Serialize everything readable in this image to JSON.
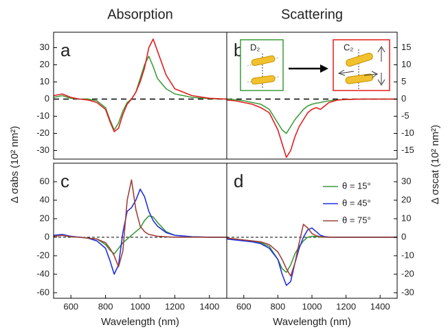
{
  "chart_data": [
    {
      "type": "line",
      "title": "Absorption",
      "panel": "a",
      "ylabel": "Δ σabs (10² nm²)",
      "xlim": [
        500,
        1500
      ],
      "ylim": [
        -35,
        39
      ],
      "yticks": [
        -30,
        -20,
        -10,
        0,
        10,
        20,
        30
      ],
      "x": [
        500,
        550,
        600,
        650,
        700,
        750,
        800,
        825,
        850,
        875,
        900,
        925,
        950,
        975,
        1000,
        1025,
        1050,
        1075,
        1100,
        1150,
        1200,
        1300,
        1400,
        1500
      ],
      "series": [
        {
          "color": "#3a9a3a",
          "values": [
            1,
            2,
            0.5,
            0,
            0,
            -1,
            -5,
            -12,
            -18,
            -14,
            -7,
            -2,
            0,
            4,
            12,
            20,
            25,
            19,
            12,
            6,
            3,
            1,
            0.3,
            0
          ]
        },
        {
          "color": "#e41a1c",
          "values": [
            2,
            3,
            1,
            0,
            -0.5,
            -2,
            -6,
            -13,
            -19,
            -17,
            -9,
            -3,
            0,
            4,
            10,
            18,
            30,
            35,
            28,
            14,
            6,
            2,
            0.5,
            0
          ]
        }
      ]
    },
    {
      "type": "line",
      "title": "Scattering",
      "panel": "b",
      "y2label": "Δ σscat (10² nm²)",
      "annotations": [
        "D₂",
        "C₂"
      ],
      "xlim": [
        500,
        1500
      ],
      "y2lim": [
        -17.5,
        19.5
      ],
      "y2ticks": [
        -15,
        -10,
        -5,
        0,
        5,
        10,
        15
      ],
      "x": [
        500,
        550,
        600,
        650,
        700,
        750,
        800,
        825,
        850,
        875,
        900,
        925,
        950,
        975,
        1000,
        1025,
        1050,
        1075,
        1100,
        1150,
        1200,
        1300,
        1400,
        1500
      ],
      "series": [
        {
          "color": "#3a9a3a",
          "axis": "y2",
          "values": [
            0,
            -0.2,
            -0.5,
            -1,
            -1.5,
            -3,
            -7,
            -9,
            -10,
            -8,
            -6,
            -4.5,
            -3,
            -2,
            -1.5,
            -1.2,
            -1,
            -0.7,
            -0.5,
            -0.2,
            -0.1,
            0,
            0,
            0
          ]
        },
        {
          "color": "#e41a1c",
          "axis": "y2",
          "values": [
            -0.3,
            -0.5,
            -1,
            -1.5,
            -2.5,
            -4,
            -9,
            -13,
            -17,
            -15,
            -11,
            -8,
            -6,
            -4,
            -3,
            -2.5,
            -3,
            -2,
            -1,
            -0.3,
            -0.1,
            0,
            0,
            0
          ]
        }
      ]
    },
    {
      "type": "line",
      "panel": "c",
      "xlabel": "Wavelength (nm)",
      "xlim": [
        500,
        1500
      ],
      "xticks": [
        600,
        800,
        1000,
        1200,
        1400
      ],
      "ylim": [
        -66,
        80
      ],
      "yticks": [
        -60,
        -40,
        -20,
        0,
        20,
        40,
        60
      ],
      "x": [
        500,
        550,
        600,
        650,
        700,
        750,
        800,
        825,
        850,
        875,
        900,
        925,
        950,
        975,
        1000,
        1025,
        1050,
        1075,
        1100,
        1150,
        1200,
        1300,
        1400,
        1500
      ],
      "series": [
        {
          "color": "#3a9a3a",
          "values": [
            1,
            2,
            0.5,
            0,
            -1,
            -2,
            -8,
            -14,
            -18,
            -12,
            -6,
            -2,
            2,
            6,
            10,
            18,
            23,
            22,
            16,
            6,
            2,
            0.5,
            0,
            0
          ]
        },
        {
          "color": "#1f2fe0",
          "values": [
            2,
            3,
            1,
            0,
            -1,
            -4,
            -12,
            -25,
            -40,
            -30,
            5,
            28,
            32,
            40,
            52,
            44,
            28,
            18,
            12,
            5,
            2,
            0.5,
            0,
            0
          ]
        },
        {
          "color": "#a0403a",
          "values": [
            1,
            2,
            0.5,
            0,
            -1,
            -2,
            -6,
            -12,
            -20,
            -32,
            -15,
            40,
            62,
            30,
            12,
            6,
            3,
            2,
            1,
            0.5,
            0,
            0,
            0,
            0
          ]
        }
      ]
    },
    {
      "type": "line",
      "panel": "d",
      "xlabel": "Wavelength (nm)",
      "xlim": [
        500,
        1500
      ],
      "xticks": [
        600,
        800,
        1000,
        1200,
        1400
      ],
      "y2lim": [
        -33,
        40
      ],
      "y2ticks": [
        -30,
        -20,
        -10,
        0,
        10,
        20,
        30
      ],
      "x": [
        500,
        550,
        600,
        650,
        700,
        750,
        800,
        825,
        850,
        875,
        900,
        925,
        950,
        975,
        1000,
        1025,
        1050,
        1075,
        1100,
        1150,
        1200,
        1300,
        1400,
        1500
      ],
      "series": [
        {
          "name": "θ = 15°",
          "color": "#3a9a3a",
          "axis": "y2",
          "values": [
            -0.5,
            -1,
            -1.5,
            -2,
            -3,
            -5,
            -12,
            -17,
            -19,
            -15,
            -9,
            -5,
            -2,
            0,
            0.5,
            0.3,
            0.1,
            0,
            0,
            0,
            0,
            0,
            0,
            0
          ]
        },
        {
          "name": "θ = 45°",
          "color": "#1f2fe0",
          "axis": "y2",
          "values": [
            -1,
            -1.5,
            -2,
            -2.5,
            -3.5,
            -6,
            -12,
            -20,
            -26,
            -24,
            -14,
            -6,
            0,
            4,
            5,
            3,
            1,
            0.3,
            0.1,
            0,
            0,
            0,
            0,
            0
          ]
        },
        {
          "name": "θ = 75°",
          "color": "#a0403a",
          "axis": "y2",
          "values": [
            -0.5,
            -1,
            -1.5,
            -2,
            -2.5,
            -4,
            -8,
            -12,
            -17,
            -21,
            -14,
            -3,
            7,
            5,
            2,
            0.8,
            0.3,
            0.1,
            0,
            0,
            0,
            0,
            0,
            0
          ]
        }
      ]
    }
  ]
}
